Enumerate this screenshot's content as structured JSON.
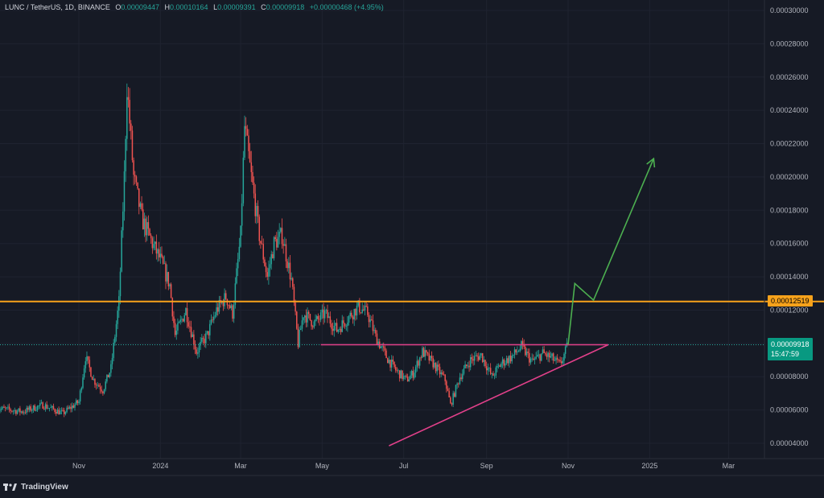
{
  "header": {
    "symbol": "LUNC / TetherUS, 1D, BINANCE",
    "open_key": "O",
    "open": "0.00009447",
    "high_key": "H",
    "high": "0.00010164",
    "low_key": "L",
    "low": "0.00009391",
    "close_key": "C",
    "close": "0.00009918",
    "change": "+0.00000468 (+4.95%)"
  },
  "price_tags": {
    "resistance": "0.00012519",
    "current": "0.00009918",
    "countdown": "15:47:59"
  },
  "branding": {
    "name": "TradingView"
  },
  "colors": {
    "background": "#161a25",
    "grid": "#1f2330",
    "up": "#26a69a",
    "down": "#ef5350",
    "resistance": "#f7a21b",
    "pattern": "#e2408a",
    "projection": "#4caf50",
    "text": "#b2b5be"
  },
  "chart_data": {
    "type": "candlestick",
    "interval": "1D",
    "y_axis": {
      "min": 3.2e-05,
      "max": 0.0003,
      "ticks": [
        "0.00004000",
        "0.00006000",
        "0.00008000",
        "0.00010000",
        "0.00012000",
        "0.00014000",
        "0.00016000",
        "0.00018000",
        "0.00020000",
        "0.00022000",
        "0.00024000",
        "0.00026000",
        "0.00028000",
        "0.00030000"
      ]
    },
    "x_axis": {
      "ticks": [
        {
          "label": "Nov",
          "date": "2023-11-01"
        },
        {
          "label": "2024",
          "date": "2024-01-01"
        },
        {
          "label": "Mar",
          "date": "2024-03-01"
        },
        {
          "label": "May",
          "date": "2024-05-01"
        },
        {
          "label": "Jul",
          "date": "2024-07-01"
        },
        {
          "label": "Sep",
          "date": "2024-09-01"
        },
        {
          "label": "Nov",
          "date": "2024-11-01"
        },
        {
          "label": "2025",
          "date": "2025-01-01"
        },
        {
          "label": "Mar",
          "date": "2025-03-01"
        }
      ]
    },
    "price_path": [
      [
        "2023-09-01",
        6.1e-05
      ],
      [
        "2023-09-20",
        5.9e-05
      ],
      [
        "2023-10-05",
        6.3e-05
      ],
      [
        "2023-10-20",
        5.8e-05
      ],
      [
        "2023-11-01",
        6.5e-05
      ],
      [
        "2023-11-06",
        9.2e-05
      ],
      [
        "2023-11-12",
        7.8e-05
      ],
      [
        "2023-11-19",
        7.2e-05
      ],
      [
        "2023-11-25",
        8.5e-05
      ],
      [
        "2023-12-01",
        0.000125
      ],
      [
        "2023-12-05",
        0.0002
      ],
      [
        "2023-12-07",
        0.000255
      ],
      [
        "2023-12-12",
        0.0002
      ],
      [
        "2023-12-18",
        0.000175
      ],
      [
        "2023-12-26",
        0.00016
      ],
      [
        "2024-01-01",
        0.00015
      ],
      [
        "2024-01-08",
        0.000135
      ],
      [
        "2024-01-12",
        0.000105
      ],
      [
        "2024-01-20",
        0.00012
      ],
      [
        "2024-01-28",
        9.5e-05
      ],
      [
        "2024-02-05",
        0.000105
      ],
      [
        "2024-02-12",
        0.00012
      ],
      [
        "2024-02-19",
        0.000128
      ],
      [
        "2024-02-24",
        0.000118
      ],
      [
        "2024-03-01",
        0.000165
      ],
      [
        "2024-03-04",
        0.00023
      ],
      [
        "2024-03-09",
        0.0002
      ],
      [
        "2024-03-15",
        0.000165
      ],
      [
        "2024-03-21",
        0.00014
      ],
      [
        "2024-03-26",
        0.00016
      ],
      [
        "2024-04-01",
        0.000165
      ],
      [
        "2024-04-08",
        0.000138
      ],
      [
        "2024-04-13",
        0.0001
      ],
      [
        "2024-04-17",
        0.000118
      ],
      [
        "2024-04-25",
        0.000112
      ],
      [
        "2024-05-03",
        0.000118
      ],
      [
        "2024-05-12",
        0.000108
      ],
      [
        "2024-05-20",
        0.000115
      ],
      [
        "2024-05-28",
        0.000122
      ],
      [
        "2024-06-04",
        0.000118
      ],
      [
        "2024-06-10",
        0.000104
      ],
      [
        "2024-06-18",
        9.2e-05
      ],
      [
        "2024-06-25",
        8.4e-05
      ],
      [
        "2024-07-03",
        7.8e-05
      ],
      [
        "2024-07-08",
        8.2e-05
      ],
      [
        "2024-07-15",
        9.5e-05
      ],
      [
        "2024-07-23",
        8.8e-05
      ],
      [
        "2024-08-01",
        7.8e-05
      ],
      [
        "2024-08-05",
        6.3e-05
      ],
      [
        "2024-08-12",
        8e-05
      ],
      [
        "2024-08-20",
        9e-05
      ],
      [
        "2024-08-28",
        9.3e-05
      ],
      [
        "2024-09-05",
        8e-05
      ],
      [
        "2024-09-12",
        8.8e-05
      ],
      [
        "2024-09-20",
        9.2e-05
      ],
      [
        "2024-09-27",
        9.8e-05
      ],
      [
        "2024-10-05",
        8.9e-05
      ],
      [
        "2024-10-13",
        9.4e-05
      ],
      [
        "2024-10-20",
        9.1e-05
      ],
      [
        "2024-10-26",
        8.7e-05
      ],
      [
        "2024-11-01",
        9.92e-05
      ]
    ],
    "current_price": 9.918e-05,
    "resistance_level": 0.00012519,
    "triangle": {
      "top": [
        [
          "2024-04-30",
          9.92e-05
        ],
        [
          "2024-12-01",
          9.92e-05
        ]
      ],
      "bottom": [
        [
          "2024-06-20",
          3.85e-05
        ],
        [
          "2024-12-01",
          9.92e-05
        ]
      ]
    },
    "projection": [
      [
        "2024-11-01",
        9.92e-05
      ],
      [
        "2024-11-06",
        0.000136
      ],
      [
        "2024-11-20",
        0.000126
      ],
      [
        "2025-01-04",
        0.000211
      ]
    ]
  }
}
